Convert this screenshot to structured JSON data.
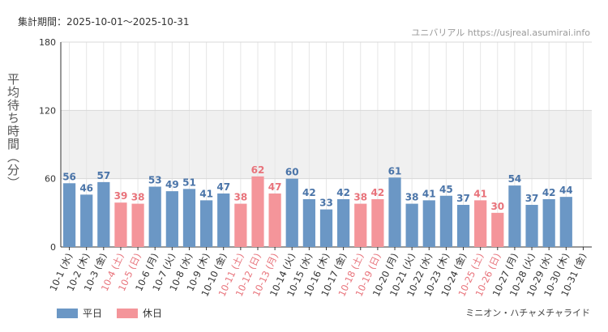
{
  "header": {
    "period": "集計期間：2025-10-01～2025-10-31",
    "watermark": "ユニバリアル https://usjreal.asumirai.info"
  },
  "footer": {
    "attraction": "ミニオン・ハチャメチャライド"
  },
  "colors": {
    "weekday": "#6b97c5",
    "holiday": "#f4959a",
    "holiday_text": "#e8737b",
    "band": "#f0f0f0"
  },
  "chart_data": {
    "type": "bar",
    "ylabel": "平均待ち時間（分）",
    "ylim": [
      0,
      180
    ],
    "yticks": [
      0,
      60,
      120,
      180
    ],
    "shaded_band": [
      60,
      120
    ],
    "legend": [
      {
        "label": "平日",
        "key": "weekday"
      },
      {
        "label": "休日",
        "key": "holiday"
      }
    ],
    "categories": [
      "10-1 (水)",
      "10-2 (木)",
      "10-3 (金)",
      "10-4 (土)",
      "10-5 (日)",
      "10-6 (月)",
      "10-7 (火)",
      "10-8 (水)",
      "10-9 (木)",
      "10-10 (金)",
      "10-11 (土)",
      "10-12 (日)",
      "10-13 (月)",
      "10-14 (火)",
      "10-15 (水)",
      "10-16 (木)",
      "10-17 (金)",
      "10-18 (土)",
      "10-19 (日)",
      "10-20 (月)",
      "10-21 (火)",
      "10-22 (水)",
      "10-23 (木)",
      "10-24 (金)",
      "10-25 (土)",
      "10-26 (日)",
      "10-27 (月)",
      "10-28 (火)",
      "10-29 (水)",
      "10-30 (木)",
      "10-31 (金)"
    ],
    "values": [
      56,
      46,
      57,
      39,
      38,
      53,
      49,
      51,
      41,
      47,
      38,
      62,
      47,
      60,
      42,
      33,
      42,
      38,
      42,
      61,
      38,
      41,
      45,
      37,
      41,
      30,
      54,
      37,
      42,
      44,
      null
    ],
    "day_type": [
      "weekday",
      "weekday",
      "weekday",
      "holiday",
      "holiday",
      "weekday",
      "weekday",
      "weekday",
      "weekday",
      "weekday",
      "holiday",
      "holiday",
      "holiday",
      "weekday",
      "weekday",
      "weekday",
      "weekday",
      "holiday",
      "holiday",
      "weekday",
      "weekday",
      "weekday",
      "weekday",
      "weekday",
      "holiday",
      "holiday",
      "weekday",
      "weekday",
      "weekday",
      "weekday",
      "weekday"
    ]
  }
}
